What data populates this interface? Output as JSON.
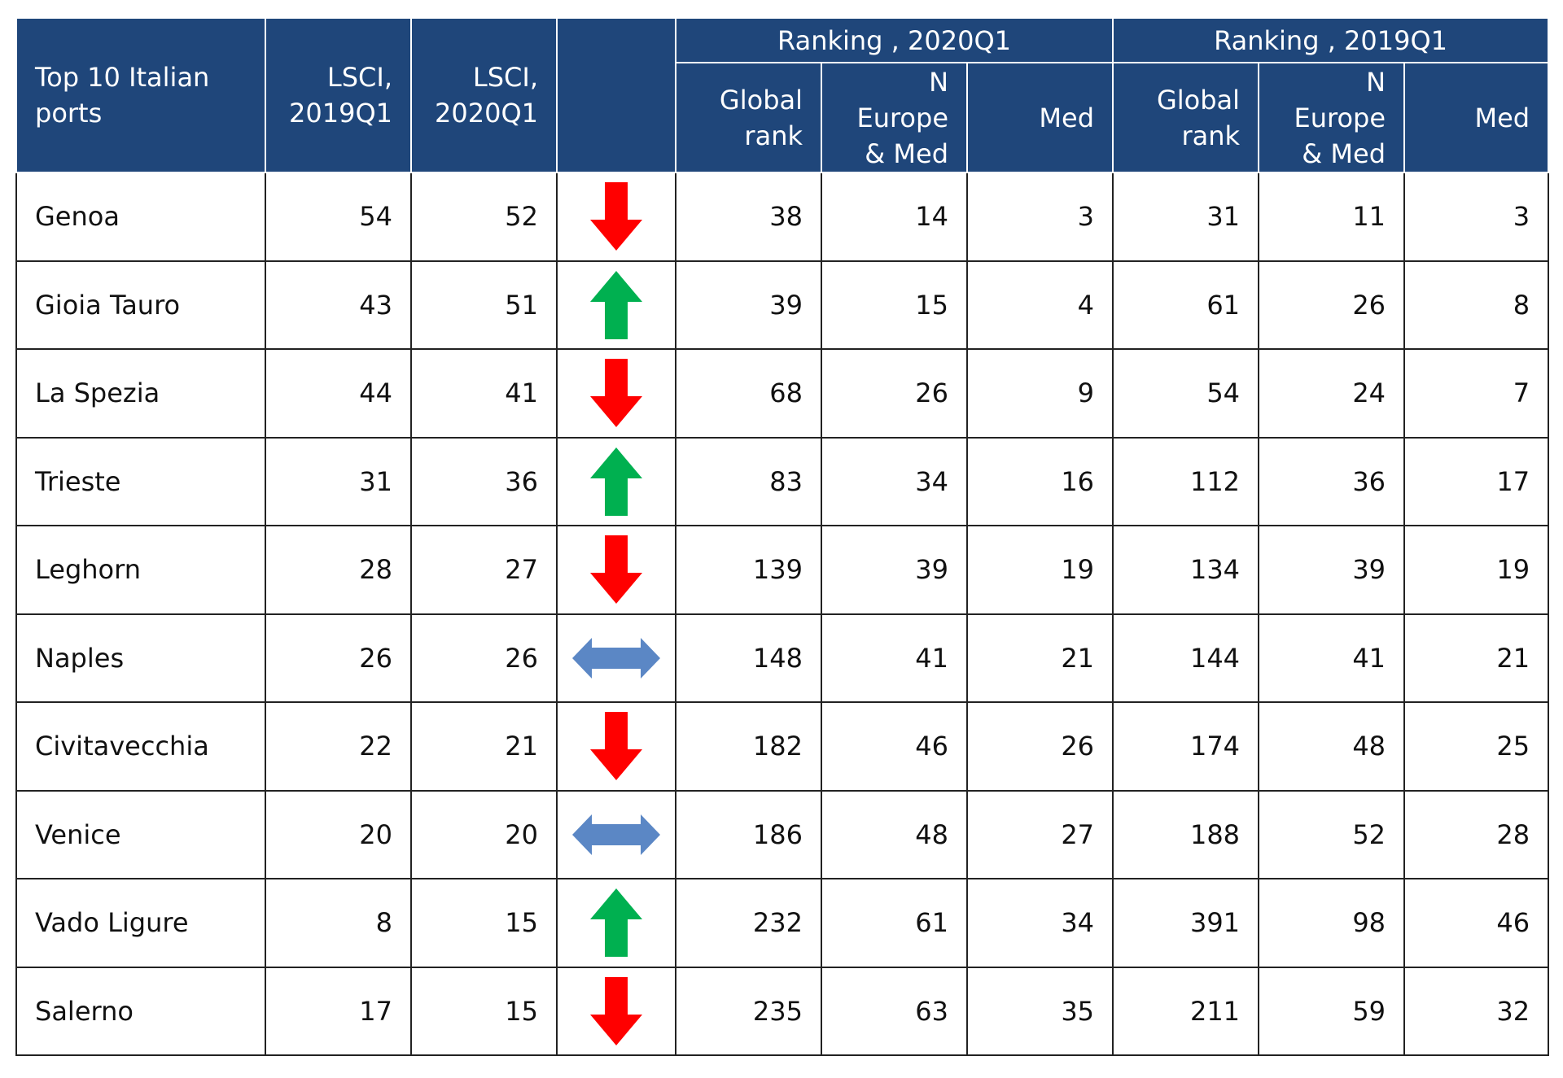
{
  "header": {
    "port_col": "Top 10 Italian ports",
    "lsci_2019": "LSCI, 2019Q1",
    "lsci_2020": "LSCI, 2020Q1",
    "trend_col": "",
    "group_2020": "Ranking , 2020Q1",
    "group_2019": "Ranking , 2019Q1",
    "global_rank": "Global rank",
    "n_europe_med": "N Europe & Med",
    "med": "Med"
  },
  "colors": {
    "header_bg": "#1f467a",
    "arrow_down": "#ff0000",
    "arrow_up": "#00b050",
    "arrow_flat": "#5b87c5"
  },
  "rows": [
    {
      "port": "Genoa",
      "lsci2019": "54",
      "lsci2020": "52",
      "trend": "down",
      "g2020": "38",
      "n2020": "14",
      "m2020": "3",
      "g2019": "31",
      "n2019": "11",
      "m2019": "3"
    },
    {
      "port": "Gioia Tauro",
      "lsci2019": "43",
      "lsci2020": "51",
      "trend": "up",
      "g2020": "39",
      "n2020": "15",
      "m2020": "4",
      "g2019": "61",
      "n2019": "26",
      "m2019": "8"
    },
    {
      "port": "La Spezia",
      "lsci2019": "44",
      "lsci2020": "41",
      "trend": "down",
      "g2020": "68",
      "n2020": "26",
      "m2020": "9",
      "g2019": "54",
      "n2019": "24",
      "m2019": "7"
    },
    {
      "port": "Trieste",
      "lsci2019": "31",
      "lsci2020": "36",
      "trend": "up",
      "g2020": "83",
      "n2020": "34",
      "m2020": "16",
      "g2019": "112",
      "n2019": "36",
      "m2019": "17"
    },
    {
      "port": "Leghorn",
      "lsci2019": "28",
      "lsci2020": "27",
      "trend": "down",
      "g2020": "139",
      "n2020": "39",
      "m2020": "19",
      "g2019": "134",
      "n2019": "39",
      "m2019": "19"
    },
    {
      "port": "Naples",
      "lsci2019": "26",
      "lsci2020": "26",
      "trend": "flat",
      "g2020": "148",
      "n2020": "41",
      "m2020": "21",
      "g2019": "144",
      "n2019": "41",
      "m2019": "21"
    },
    {
      "port": "Civitavecchia",
      "lsci2019": "22",
      "lsci2020": "21",
      "trend": "down",
      "g2020": "182",
      "n2020": "46",
      "m2020": "26",
      "g2019": "174",
      "n2019": "48",
      "m2019": "25"
    },
    {
      "port": "Venice",
      "lsci2019": "20",
      "lsci2020": "20",
      "trend": "flat",
      "g2020": "186",
      "n2020": "48",
      "m2020": "27",
      "g2019": "188",
      "n2019": "52",
      "m2019": "28"
    },
    {
      "port": "Vado Ligure",
      "lsci2019": "8",
      "lsci2020": "15",
      "trend": "up",
      "g2020": "232",
      "n2020": "61",
      "m2020": "34",
      "g2019": "391",
      "n2019": "98",
      "m2019": "46"
    },
    {
      "port": "Salerno",
      "lsci2019": "17",
      "lsci2020": "15",
      "trend": "down",
      "g2020": "235",
      "n2020": "63",
      "m2020": "35",
      "g2019": "211",
      "n2019": "59",
      "m2019": "32"
    }
  ]
}
